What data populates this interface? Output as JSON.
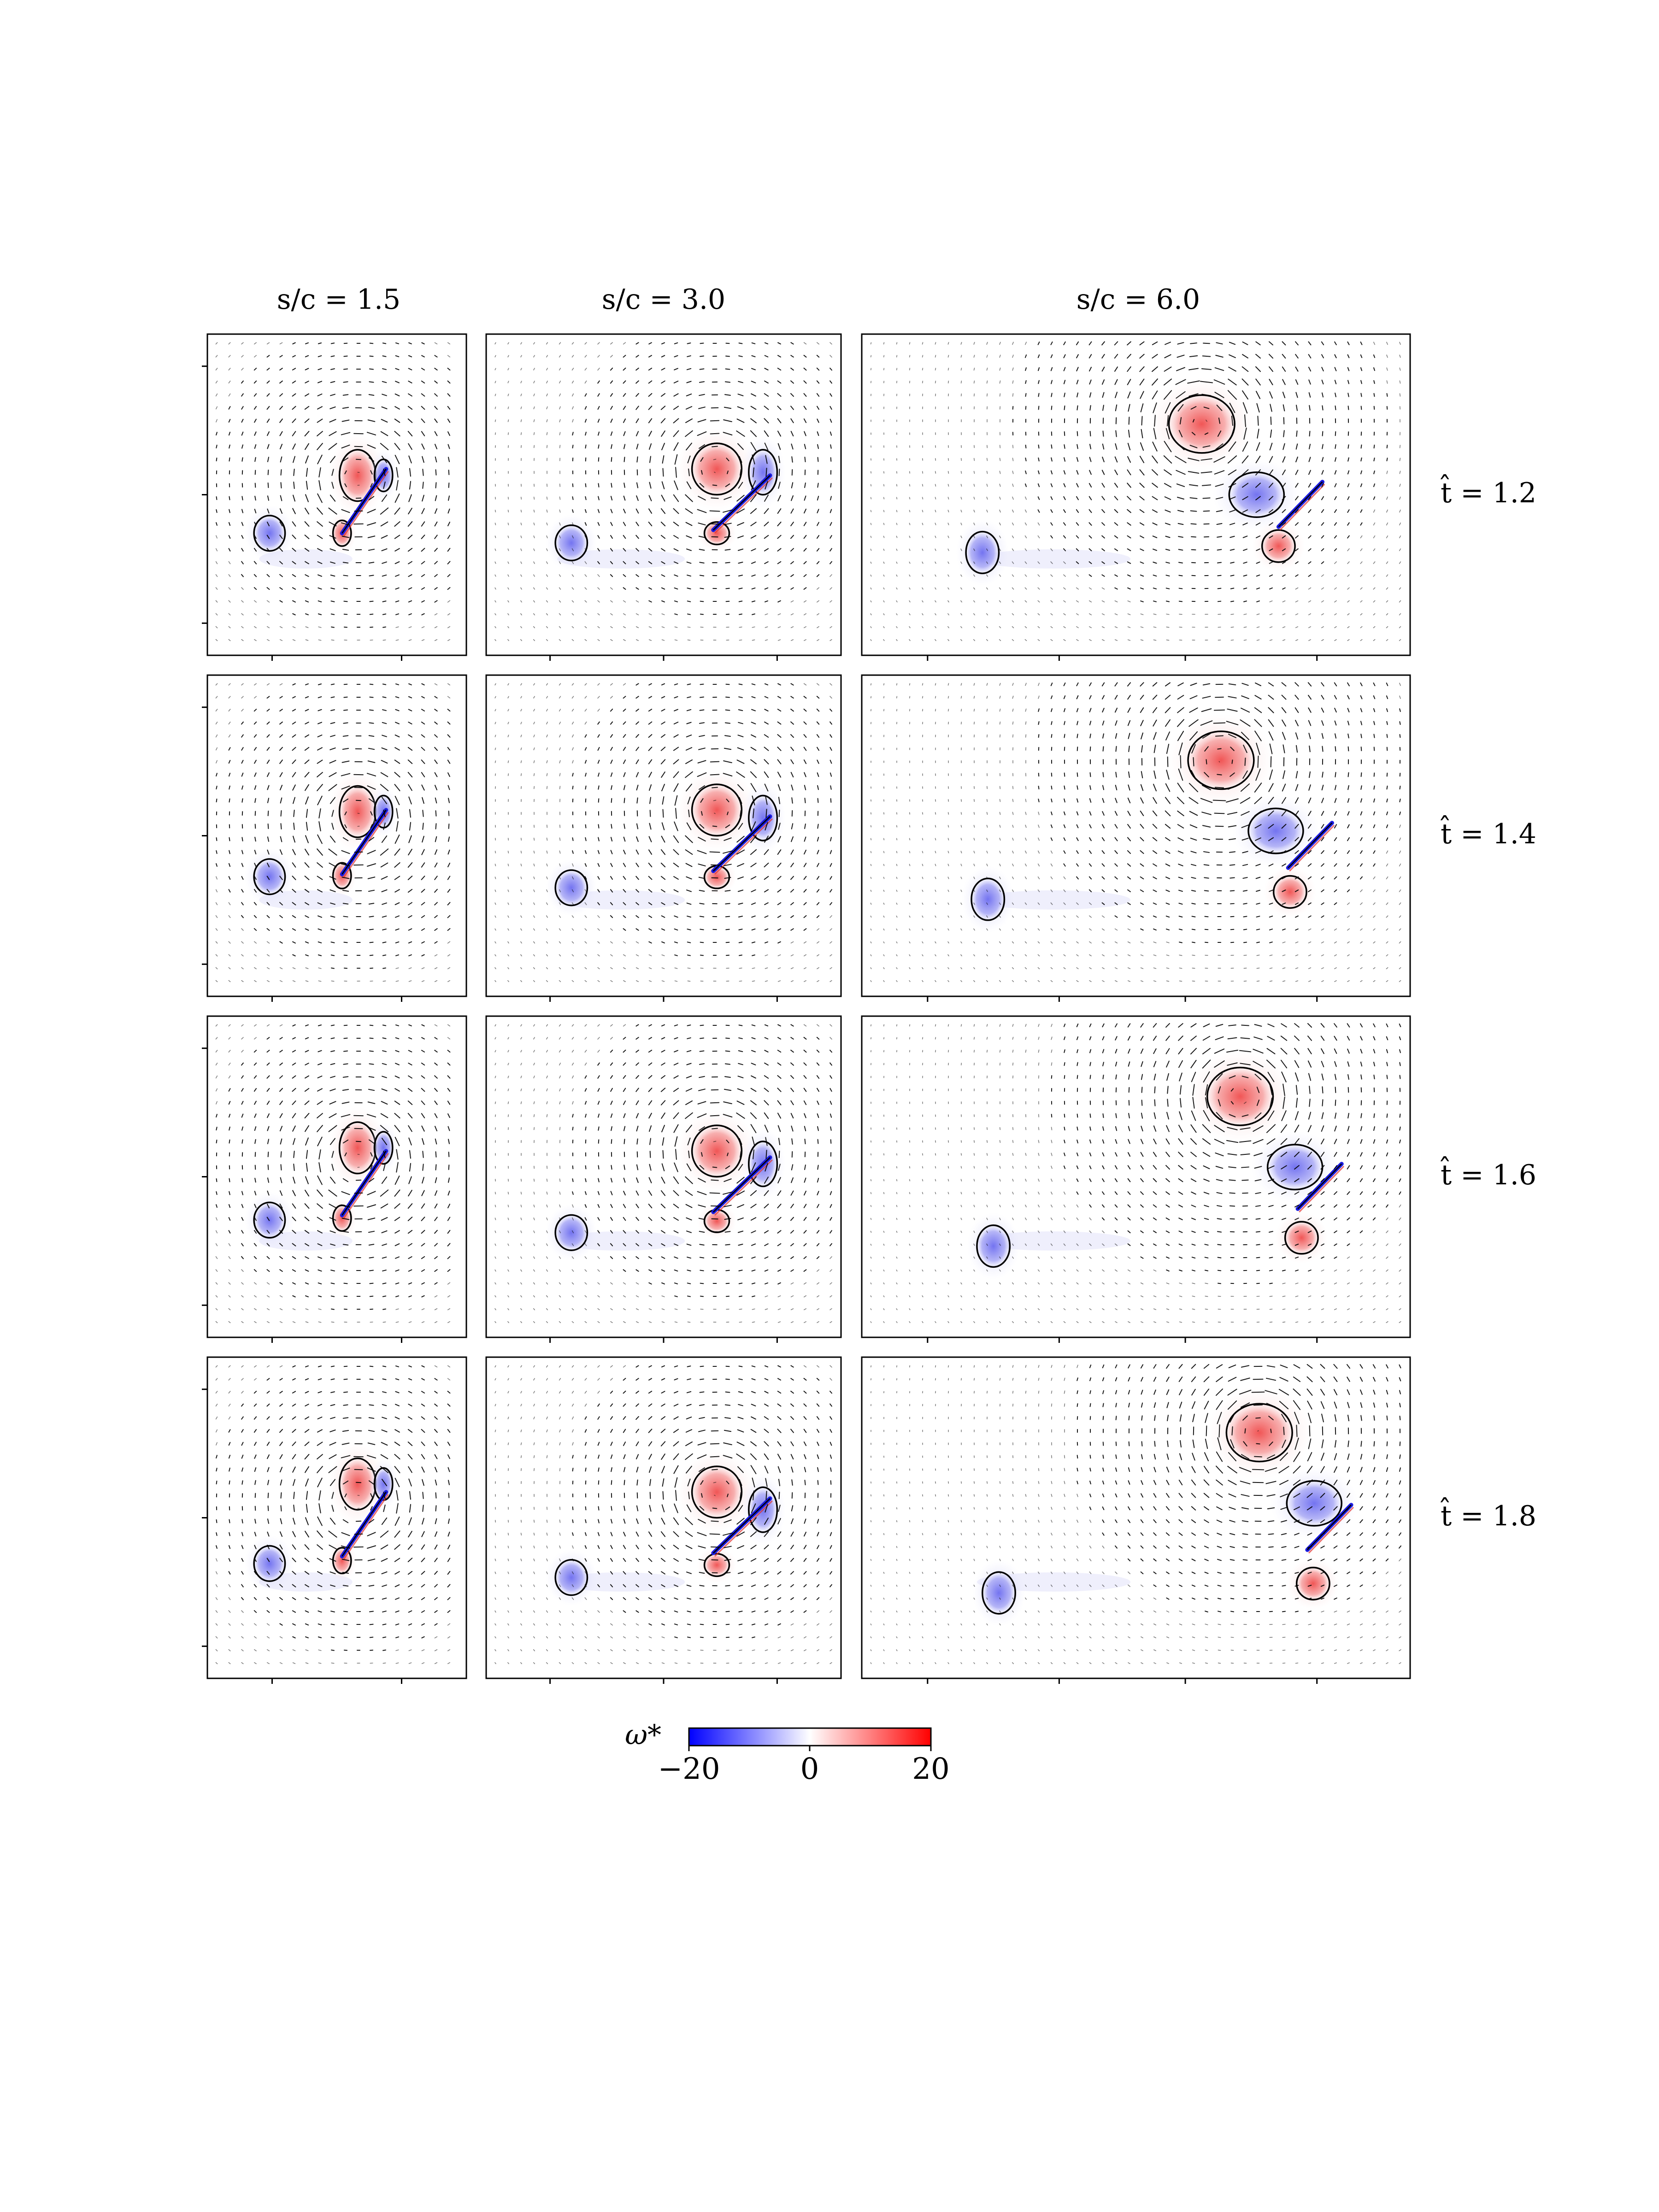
{
  "chart_data": {
    "type": "heatmap",
    "description_kind": "grid of vorticity-field panels with velocity vectors",
    "columns": [
      {
        "label_prefix": "s/c",
        "value": "1.5"
      },
      {
        "label_prefix": "s/c",
        "value": "3.0"
      },
      {
        "label_prefix": "s/c",
        "value": "6.0"
      }
    ],
    "rows": [
      {
        "label_prefix": "t̂",
        "value": "1.2"
      },
      {
        "label_prefix": "t̂",
        "value": "1.4"
      },
      {
        "label_prefix": "t̂",
        "value": "1.6"
      },
      {
        "label_prefix": "t̂",
        "value": "1.8"
      }
    ],
    "colorbar": {
      "label": "ω*",
      "min": -20,
      "max": 20,
      "ticks": [
        "−20",
        "0",
        "20"
      ],
      "colors": {
        "negative": "#0000ff",
        "zero": "#ffffff",
        "positive": "#ff0000"
      }
    }
  },
  "labels": {
    "col_titles": [
      "s/c = 1.5",
      "s/c = 3.0",
      "s/c = 6.0"
    ],
    "row_titles": [
      "t̂ = 1.2",
      "t̂ = 1.4",
      "t̂ = 1.6",
      "t̂ = 1.8"
    ]
  }
}
